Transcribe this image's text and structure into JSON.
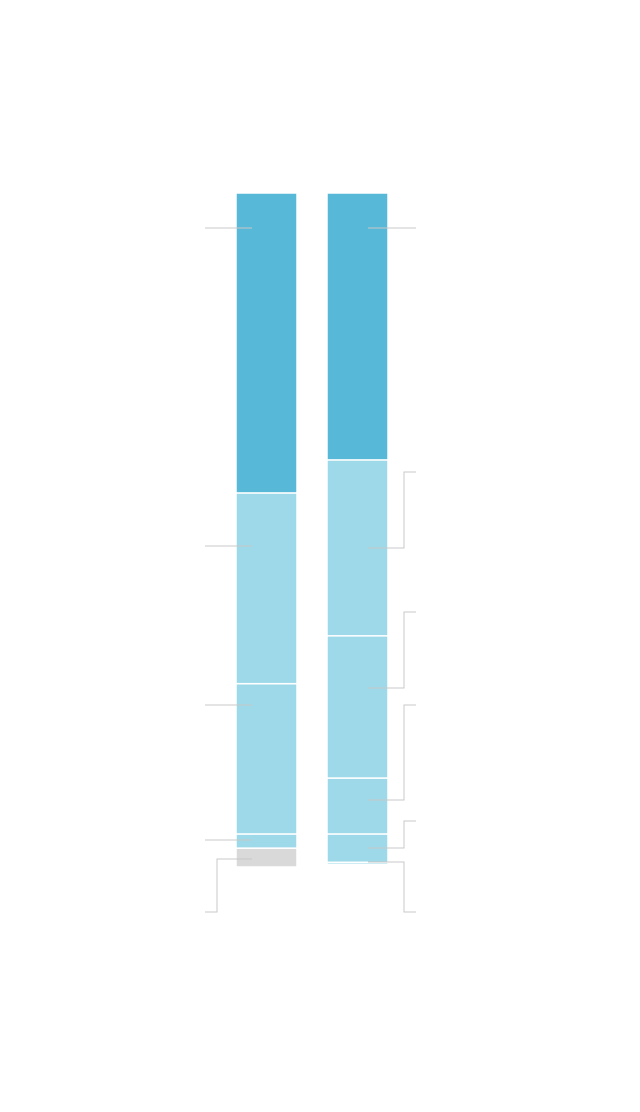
{
  "chart_data": {
    "type": "stacked-bar",
    "categories": [
      null,
      null
    ],
    "ylim": [
      0,
      100
    ],
    "series": [
      {
        "color": "#57b8d7",
        "values": [
          44.5,
          39.6
        ]
      },
      {
        "color": "#9dd9e8",
        "values": [
          28.3,
          26.1
        ]
      },
      {
        "color": "#9dd9e8",
        "values": [
          22.3,
          21.1
        ]
      },
      {
        "color": "#9dd9e8",
        "values": [
          2.1,
          8.3
        ]
      },
      {
        "color": "#9dd9e8",
        "values": [
          null,
          4.2
        ]
      },
      {
        "color": "#d9d9d9",
        "values": [
          2.8,
          null
        ]
      },
      {
        "color": "#9dd9e8",
        "values": [
          null,
          0.3
        ]
      }
    ]
  }
}
